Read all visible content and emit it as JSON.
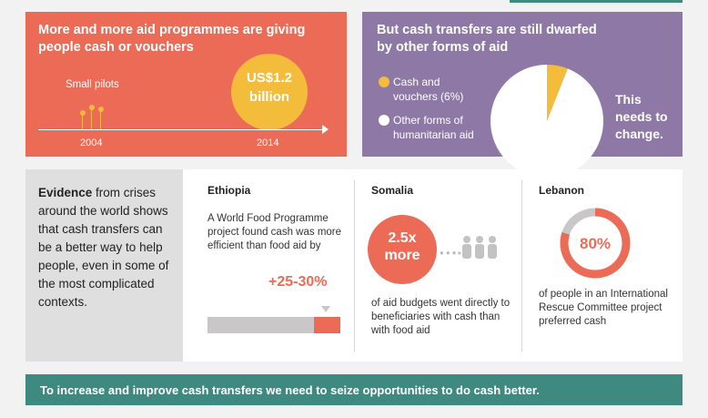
{
  "panel_cash": {
    "title": "More and more aid programmes are giving people cash or vouchers",
    "small_pilots": "Small pilots",
    "amount_line1": "US$1.2",
    "amount_line2": "billion",
    "year_start": "2004",
    "year_end": "2014"
  },
  "panel_dwarfed": {
    "title": "But cash transfers are still dwarfed by other forms of aid",
    "legend_cash": "Cash and vouchers (6%)",
    "legend_other": "Other forms of humanitarian aid",
    "callout_line1": "This",
    "callout_line2": "needs to",
    "callout_line3": "change.",
    "colors": {
      "cash": "#f3bc3b",
      "other": "#ffffff"
    }
  },
  "chart_data": {
    "type": "pie",
    "categories": [
      "Cash and vouchers",
      "Other forms of humanitarian aid"
    ],
    "values": [
      6,
      94
    ]
  },
  "evidence": {
    "lead": "Evidence",
    "text": " from crises around the world shows that cash transfers can be a better way to help people, even in some of the most complicated contexts."
  },
  "ethiopia": {
    "country": "Ethiopia",
    "text": "A World Food Programme project found cash was more efficient than food aid by",
    "stat": "+25-30%",
    "bar_fraction": 0.8
  },
  "somalia": {
    "country": "Somalia",
    "stat_line1": "2.5x",
    "stat_line2": "more",
    "text": "of aid budgets went directly to beneficiaries with cash than with food aid"
  },
  "lebanon": {
    "country": "Lebanon",
    "stat": "80%",
    "value": 80,
    "text": "of people in an International Rescue Committee project preferred cash"
  },
  "banner": {
    "text": "To increase and improve cash transfers we need to seize opportunities to do cash better."
  }
}
